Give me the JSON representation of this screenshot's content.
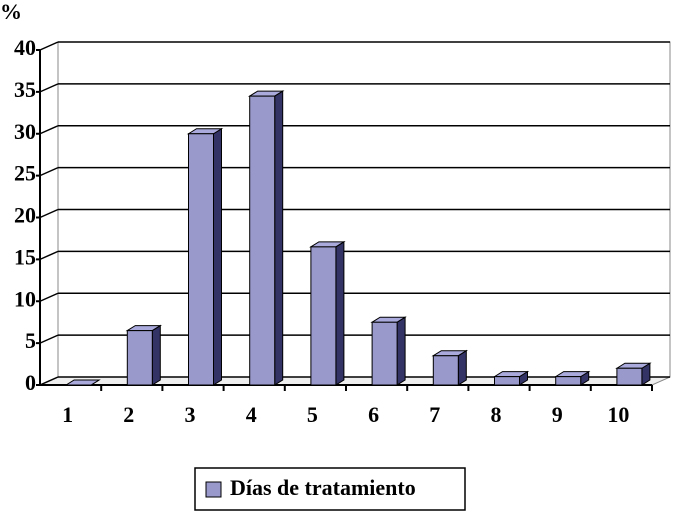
{
  "chart_data": {
    "type": "bar3d",
    "y_label": "%",
    "categories": [
      "1",
      "2",
      "3",
      "4",
      "5",
      "6",
      "7",
      "8",
      "9",
      "10"
    ],
    "series": [
      {
        "name": "Días de tratamiento",
        "color": "#9999cc",
        "values": [
          0,
          6.5,
          30,
          34.5,
          16.5,
          7.5,
          3.5,
          1,
          1,
          2
        ]
      }
    ],
    "ylim": [
      0,
      40
    ],
    "yticks": [
      0,
      5,
      10,
      15,
      20,
      25,
      30,
      35,
      40
    ],
    "grid": true,
    "legend": "bottom"
  }
}
